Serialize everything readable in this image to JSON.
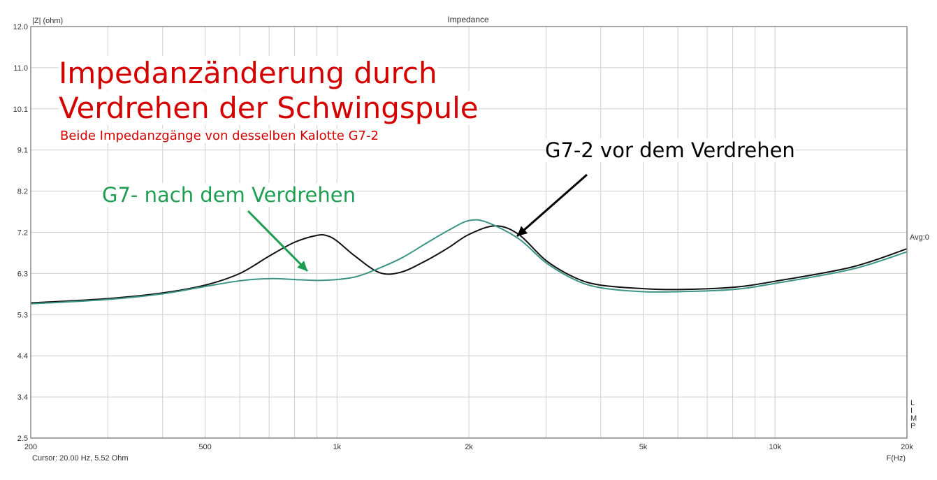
{
  "chart_data": {
    "type": "line",
    "title": "Impedance",
    "ylabel": "|Z| (ohm)",
    "xlabel": "F(Hz)",
    "xscale": "log",
    "xlim": [
      200,
      20000
    ],
    "ylim": [
      2.5,
      12.0
    ],
    "grid": true,
    "yticks": [
      "12.0",
      "11.0",
      "10.1",
      "9.1",
      "8.2",
      "7.2",
      "6.3",
      "5.3",
      "4.4",
      "3.4",
      "2.5"
    ],
    "xticks": [
      {
        "v": 200,
        "label": "200"
      },
      {
        "v": 500,
        "label": "500"
      },
      {
        "v": 1000,
        "label": "1k"
      },
      {
        "v": 2000,
        "label": "2k"
      },
      {
        "v": 5000,
        "label": "5k"
      },
      {
        "v": 10000,
        "label": "10k"
      },
      {
        "v": 20000,
        "label": "20k"
      }
    ],
    "series": [
      {
        "color": "#111111",
        "x": [
          200,
          300,
          400,
          500,
          600,
          700,
          800,
          900,
          950,
          1000,
          1100,
          1250,
          1400,
          1600,
          1800,
          2000,
          2300,
          2600,
          3000,
          3500,
          4000,
          5000,
          6000,
          8000,
          10000,
          15000,
          20000
        ],
        "y": [
          5.62,
          5.72,
          5.85,
          6.03,
          6.3,
          6.7,
          7.02,
          7.18,
          7.17,
          7.05,
          6.7,
          6.32,
          6.33,
          6.6,
          6.9,
          7.2,
          7.4,
          7.2,
          6.6,
          6.2,
          6.03,
          5.95,
          5.93,
          5.98,
          6.12,
          6.45,
          6.87
        ]
      },
      {
        "color": "#3b9486",
        "x": [
          200,
          300,
          400,
          500,
          600,
          700,
          800,
          900,
          1000,
          1100,
          1200,
          1400,
          1600,
          1800,
          2000,
          2200,
          2600,
          3000,
          3500,
          4000,
          5000,
          6000,
          8000,
          10000,
          15000,
          20000
        ],
        "y": [
          5.6,
          5.7,
          5.83,
          6.0,
          6.13,
          6.18,
          6.16,
          6.14,
          6.16,
          6.22,
          6.35,
          6.65,
          7.0,
          7.3,
          7.52,
          7.48,
          7.1,
          6.55,
          6.15,
          5.97,
          5.88,
          5.88,
          5.93,
          6.07,
          6.4,
          6.8
        ]
      }
    ]
  },
  "header": {
    "ylabel": "|Z| (ohm)",
    "title": "Impedance",
    "avg": "Avg:0",
    "limp": [
      "L",
      "I",
      "M",
      "P"
    ]
  },
  "footer": {
    "cursor": "Cursor: 20.00 Hz, 5.52 Ohm",
    "xunit": "F(Hz)"
  },
  "annotations": {
    "title_line1": "Impedanzänderung durch",
    "title_line2": "Verdrehen der Schwingspule",
    "subtitle": "Beide Impedanzgänge von desselben  Kalotte G7-2",
    "before": "G7-2 vor dem Verdrehen",
    "after": "G7- nach dem Verdrehen",
    "colors": {
      "title": "#d40000",
      "after": "#1f9e52",
      "before": "#000000"
    }
  }
}
